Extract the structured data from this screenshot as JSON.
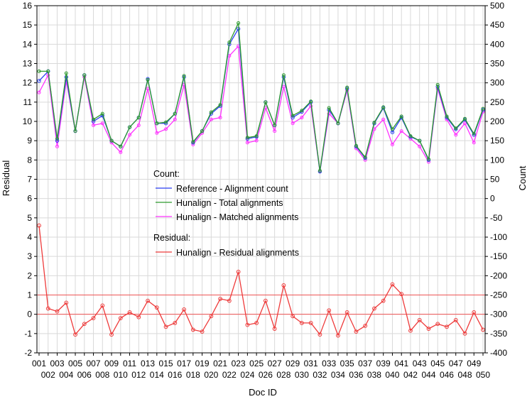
{
  "colors": {
    "reference": "#2b3ff2",
    "total": "#2e9a2e",
    "matched": "#ff33ff",
    "residual": "#ee3b3b",
    "refline": "#ee5555",
    "grid": "#d9d9d9",
    "frame": "#000000"
  },
  "chart_data": {
    "type": "line",
    "xlabel": "Doc ID",
    "ylabel_left": "Residual",
    "ylabel_right": "Count",
    "ylim_left": [
      -2,
      16
    ],
    "ylim_right": [
      -400,
      500
    ],
    "yticks_left": [
      -2,
      -1,
      0,
      1,
      2,
      3,
      4,
      5,
      6,
      7,
      8,
      9,
      10,
      11,
      12,
      13,
      14,
      15,
      16
    ],
    "yticks_right": [
      -400,
      -350,
      -300,
      -250,
      -200,
      -150,
      -100,
      -50,
      0,
      50,
      100,
      150,
      200,
      250,
      300,
      350,
      400,
      450,
      500
    ],
    "grid": true,
    "reference_lines_residual": [
      0,
      1
    ],
    "categories": [
      "001",
      "002",
      "003",
      "004",
      "005",
      "006",
      "007",
      "008",
      "009",
      "010",
      "011",
      "012",
      "013",
      "014",
      "015",
      "016",
      "017",
      "018",
      "019",
      "020",
      "021",
      "022",
      "023",
      "024",
      "025",
      "026",
      "027",
      "028",
      "029",
      "030",
      "031",
      "032",
      "033",
      "034",
      "035",
      "036",
      "037",
      "038",
      "039",
      "040",
      "041",
      "042",
      "043",
      "044",
      "045",
      "046",
      "047",
      "048",
      "049",
      "050"
    ],
    "legend": {
      "placement": "center-left",
      "count_title": "Count:",
      "residual_title": "Residual:"
    },
    "count_series": [
      {
        "name": "Reference - Alignment count",
        "key": "reference",
        "values": [
          305,
          330,
          150,
          315,
          175,
          320,
          200,
          215,
          150,
          135,
          185,
          210,
          310,
          195,
          195,
          220,
          315,
          145,
          175,
          220,
          240,
          400,
          440,
          155,
          160,
          250,
          190,
          315,
          210,
          225,
          250,
          70,
          230,
          195,
          285,
          135,
          105,
          195,
          235,
          172,
          210,
          160,
          150,
          100,
          290,
          210,
          180,
          205,
          165,
          230
        ]
      },
      {
        "name": "Hunalign - Total alignments",
        "key": "total",
        "values": [
          330,
          330,
          155,
          325,
          175,
          320,
          205,
          220,
          150,
          135,
          185,
          210,
          308,
          195,
          198,
          220,
          318,
          147,
          175,
          224,
          243,
          405,
          455,
          158,
          162,
          250,
          190,
          320,
          215,
          228,
          252,
          72,
          235,
          195,
          288,
          137,
          107,
          197,
          237,
          180,
          213,
          162,
          150,
          102,
          295,
          213,
          182,
          207,
          168,
          233
        ]
      },
      {
        "name": "Hunalign - Matched alignments",
        "key": "matched",
        "values": [
          275,
          320,
          135,
          305,
          175,
          315,
          190,
          195,
          145,
          120,
          165,
          190,
          285,
          170,
          180,
          205,
          295,
          140,
          170,
          205,
          210,
          370,
          395,
          145,
          150,
          235,
          175,
          290,
          195,
          210,
          240,
          70,
          220,
          195,
          280,
          130,
          100,
          180,
          205,
          140,
          175,
          155,
          135,
          95,
          285,
          205,
          165,
          195,
          145,
          225
        ]
      }
    ],
    "residual_series": [
      {
        "name": "Hunalign - Residual alignments",
        "key": "residual",
        "values": [
          4.6,
          0.3,
          0.15,
          0.6,
          -1.05,
          -0.5,
          -0.2,
          0.45,
          -1.05,
          -0.2,
          0.1,
          -0.15,
          0.7,
          0.35,
          -0.65,
          -0.45,
          0.25,
          -0.8,
          -0.9,
          -0.1,
          0.8,
          0.7,
          2.2,
          -0.55,
          -0.45,
          0.7,
          -0.75,
          1.5,
          -0.1,
          -0.45,
          -0.45,
          -1.05,
          0.2,
          -1.1,
          0.1,
          -0.9,
          -0.6,
          0.3,
          0.7,
          1.55,
          1.05,
          -0.85,
          -0.3,
          -0.75,
          -0.5,
          -0.65,
          -0.3,
          -1.0,
          0.1,
          -0.8
        ]
      }
    ]
  }
}
